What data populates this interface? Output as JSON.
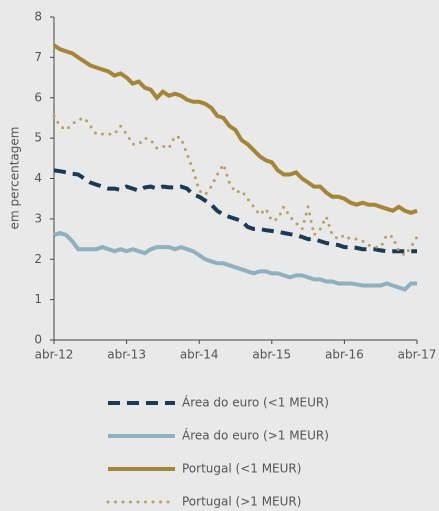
{
  "chart_data": {
    "type": "line",
    "y_label": "em percentagem",
    "categories": [
      "abr-12",
      null,
      null,
      null,
      null,
      null,
      null,
      null,
      null,
      null,
      null,
      null,
      "abr-13",
      null,
      null,
      null,
      null,
      null,
      null,
      null,
      null,
      null,
      null,
      null,
      "abr-14",
      null,
      null,
      null,
      null,
      null,
      null,
      null,
      null,
      null,
      null,
      null,
      "abr-15",
      null,
      null,
      null,
      null,
      null,
      null,
      null,
      null,
      null,
      null,
      null,
      "abr-16",
      null,
      null,
      null,
      null,
      null,
      null,
      null,
      null,
      null,
      null,
      null,
      "abr-17"
    ],
    "ylim": [
      0,
      8
    ],
    "yticks": [
      0,
      1,
      2,
      3,
      4,
      5,
      6,
      7,
      8
    ],
    "series": [
      {
        "name": "Área do euro (<1 MEUR)",
        "color": "#1b3a57",
        "style": "dashed",
        "values": [
          4.2,
          4.18,
          4.15,
          4.12,
          4.1,
          4.0,
          3.9,
          3.85,
          3.8,
          3.75,
          3.75,
          3.72,
          3.8,
          3.75,
          3.7,
          3.78,
          3.8,
          3.75,
          3.8,
          3.78,
          3.78,
          3.8,
          3.75,
          3.6,
          3.55,
          3.45,
          3.35,
          3.2,
          3.1,
          3.05,
          3.0,
          2.95,
          2.8,
          2.75,
          2.75,
          2.72,
          2.7,
          2.68,
          2.65,
          2.62,
          2.6,
          2.55,
          2.5,
          2.5,
          2.45,
          2.4,
          2.38,
          2.35,
          2.3,
          2.3,
          2.28,
          2.25,
          2.25,
          2.25,
          2.22,
          2.2,
          2.2,
          2.2,
          2.2,
          2.2,
          2.2
        ]
      },
      {
        "name": "Área do euro (>1 MEUR)",
        "color": "#8fb0bf",
        "style": "solid",
        "values": [
          2.6,
          2.65,
          2.6,
          2.45,
          2.25,
          2.25,
          2.25,
          2.25,
          2.3,
          2.25,
          2.2,
          2.25,
          2.2,
          2.25,
          2.2,
          2.15,
          2.25,
          2.3,
          2.3,
          2.3,
          2.25,
          2.3,
          2.25,
          2.2,
          2.1,
          2.0,
          1.95,
          1.9,
          1.9,
          1.85,
          1.8,
          1.75,
          1.7,
          1.65,
          1.7,
          1.7,
          1.65,
          1.65,
          1.6,
          1.55,
          1.6,
          1.6,
          1.55,
          1.5,
          1.5,
          1.45,
          1.45,
          1.4,
          1.4,
          1.4,
          1.38,
          1.35,
          1.35,
          1.35,
          1.35,
          1.4,
          1.35,
          1.3,
          1.25,
          1.4,
          1.4
        ]
      },
      {
        "name": "Portugal (<1 MEUR)",
        "color": "#a4853a",
        "style": "solid",
        "values": [
          7.3,
          7.2,
          7.15,
          7.1,
          7.0,
          6.9,
          6.8,
          6.75,
          6.7,
          6.65,
          6.55,
          6.6,
          6.5,
          6.35,
          6.4,
          6.25,
          6.2,
          6.0,
          6.15,
          6.05,
          6.1,
          6.05,
          5.95,
          5.9,
          5.9,
          5.85,
          5.75,
          5.55,
          5.5,
          5.3,
          5.2,
          4.95,
          4.85,
          4.7,
          4.55,
          4.45,
          4.4,
          4.2,
          4.1,
          4.1,
          4.15,
          4.0,
          3.9,
          3.8,
          3.8,
          3.65,
          3.55,
          3.55,
          3.5,
          3.4,
          3.35,
          3.4,
          3.35,
          3.35,
          3.3,
          3.25,
          3.2,
          3.3,
          3.2,
          3.15,
          3.2
        ]
      },
      {
        "name": "Portugal (>1 MEUR)",
        "color": "#b9a06a",
        "style": "dotted",
        "values": [
          5.55,
          5.3,
          5.2,
          5.35,
          5.45,
          5.5,
          5.3,
          5.1,
          5.1,
          5.1,
          5.1,
          5.3,
          5.1,
          4.85,
          4.85,
          5.0,
          4.95,
          4.75,
          4.8,
          4.75,
          5.05,
          5.0,
          4.6,
          4.2,
          3.7,
          3.6,
          3.8,
          4.1,
          4.35,
          3.9,
          3.65,
          3.7,
          3.5,
          3.3,
          3.1,
          3.25,
          2.95,
          3.0,
          3.3,
          3.05,
          2.9,
          2.75,
          3.3,
          2.6,
          2.75,
          3.05,
          2.6,
          2.5,
          2.6,
          2.5,
          2.5,
          2.45,
          2.35,
          2.3,
          2.3,
          2.6,
          2.55,
          2.2,
          2.1,
          2.3,
          2.55
        ]
      }
    ]
  }
}
